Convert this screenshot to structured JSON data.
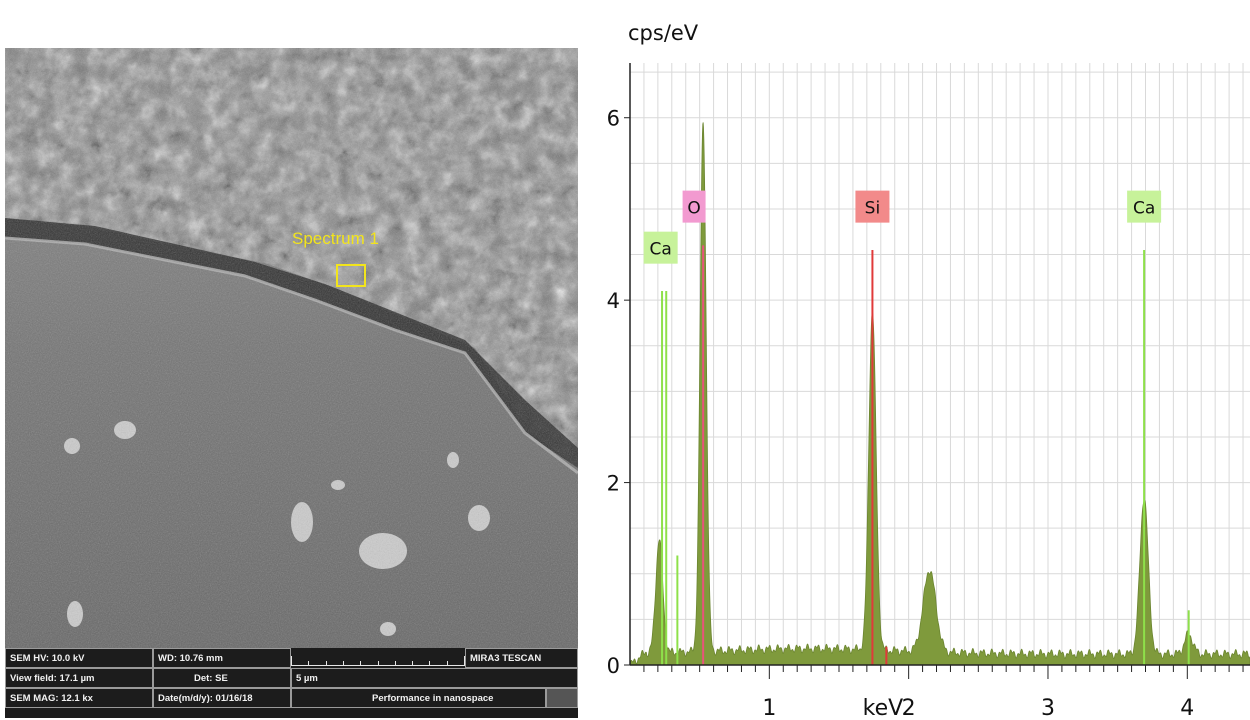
{
  "sem_image": {
    "spectrum_label": "Spectrum 1",
    "databar": {
      "hv": "SEM HV: 10.0 kV",
      "wd": "WD: 10.76 mm",
      "view_field": "View field: 17.1 µm",
      "det": "Det: SE",
      "scale": "5 µm",
      "mag": "SEM MAG: 12.1 kx",
      "date": "Date(m/d/y): 01/16/18",
      "brand": "MIRA3 TESCAN",
      "slogan": "Performance in nanospace"
    },
    "colors": {
      "marker": "#f2e41c",
      "databar": "#1c1c1c"
    }
  },
  "chart_data": {
    "type": "area",
    "title": "",
    "ylabel": "cps/eV",
    "xlabel": "keV",
    "xlim": [
      0,
      4.45
    ],
    "ylim": [
      0,
      6.6
    ],
    "x_ticks": [
      1,
      2,
      3,
      4
    ],
    "x_tick_labels": [
      "1",
      "2",
      "3",
      "4"
    ],
    "y_ticks": [
      0,
      2,
      4,
      6
    ],
    "y_tick_labels": [
      "0",
      "2",
      "4",
      "6"
    ],
    "grid": true,
    "fill_color": "#7f9a3c",
    "spectrum": {
      "background": 0.15,
      "peaks": [
        {
          "x": 0.21,
          "y": 1.25,
          "w": 0.025
        },
        {
          "x": 0.525,
          "y": 5.8,
          "w": 0.022
        },
        {
          "x": 1.74,
          "y": 3.72,
          "w": 0.026
        },
        {
          "x": 2.15,
          "y": 0.9,
          "w": 0.045
        },
        {
          "x": 3.69,
          "y": 1.72,
          "w": 0.03
        },
        {
          "x": 4.01,
          "y": 0.22,
          "w": 0.03
        }
      ]
    },
    "marker_lines": [
      {
        "element": "Ca",
        "x": 0.23,
        "height": 4.1,
        "color": "#8ee04a"
      },
      {
        "element": "Ca",
        "x": 0.26,
        "height": 4.1,
        "color": "#8ee04a"
      },
      {
        "element": "Ca",
        "x": 0.34,
        "height": 1.2,
        "color": "#8ee04a"
      },
      {
        "element": "O",
        "x": 0.525,
        "height": 4.6,
        "color": "#e8547a"
      },
      {
        "element": "Si",
        "x": 1.74,
        "height": 4.55,
        "color": "#e03a3a"
      },
      {
        "element": "Si",
        "x": 1.84,
        "height": 0.2,
        "color": "#e03a3a"
      },
      {
        "element": "Ca",
        "x": 3.69,
        "height": 4.55,
        "color": "#8ee04a"
      },
      {
        "element": "Ca",
        "x": 4.01,
        "height": 0.6,
        "color": "#8ee04a"
      }
    ],
    "peak_labels": [
      {
        "text": "Ca",
        "x": 0.22,
        "y": 4.4,
        "bg": "#c7f29a"
      },
      {
        "text": "O",
        "x": 0.46,
        "y": 4.85,
        "bg": "#f29ad0"
      },
      {
        "text": "Si",
        "x": 1.74,
        "y": 4.85,
        "bg": "#f28a8a"
      },
      {
        "text": "Ca",
        "x": 3.69,
        "y": 4.85,
        "bg": "#c7f29a"
      }
    ]
  }
}
